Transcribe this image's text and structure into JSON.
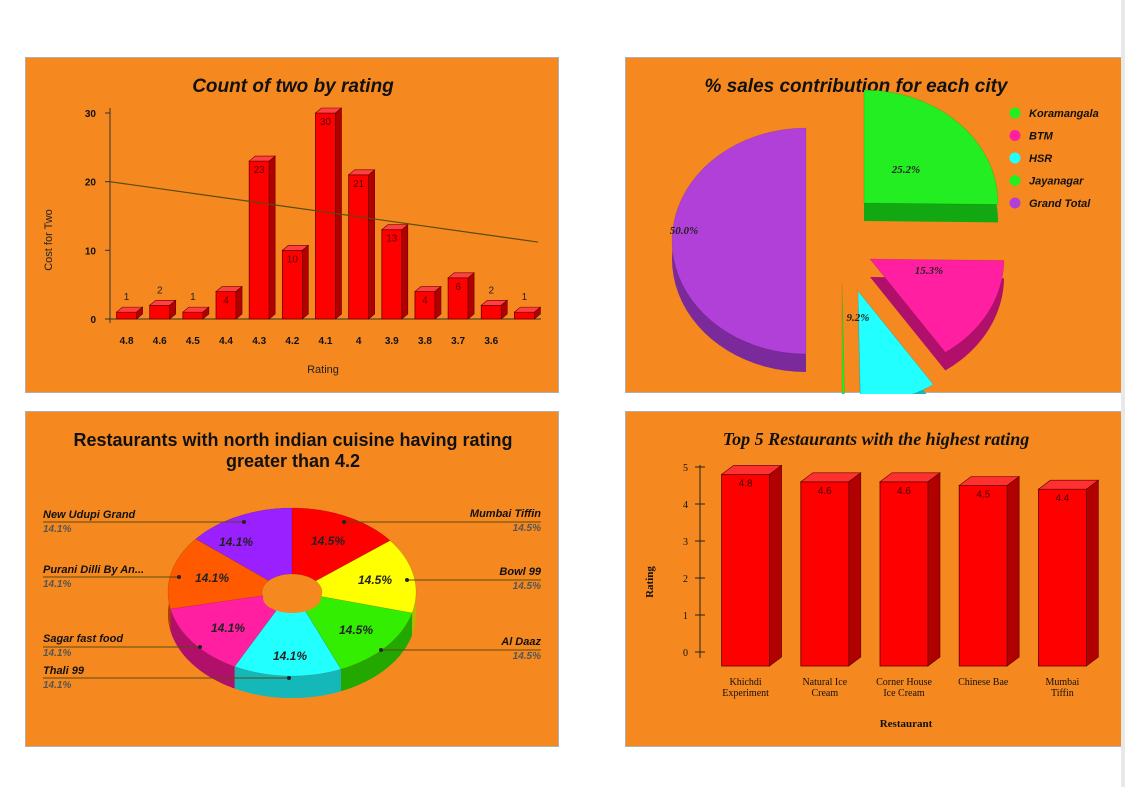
{
  "colors": {
    "panel_bg": "#f5891f",
    "bar_red": "#ff0000"
  },
  "chart_data": [
    {
      "type": "bar",
      "title": "Count of two by rating",
      "xlabel": "Rating",
      "ylabel": "Cost for Two",
      "ylim": [
        0,
        30
      ],
      "yticks": [
        "0",
        "10",
        "20",
        "30"
      ],
      "categories": [
        "4.8",
        "4.6",
        "4.5",
        "4.4",
        "4.3",
        "4.2",
        "4.1",
        "4",
        "3.9",
        "3.8",
        "3.7",
        "3.6",
        ""
      ],
      "values": [
        1,
        2,
        1,
        4,
        23,
        10,
        30,
        21,
        13,
        4,
        6,
        2,
        1
      ],
      "labels": [
        "1",
        "2",
        "1",
        "4",
        "23",
        "10",
        "30",
        "21",
        "13",
        "4",
        "6",
        "2",
        "1"
      ],
      "trendline": {
        "start": 20,
        "end": 11.2
      }
    },
    {
      "type": "pie",
      "title": "% sales contribution for each city",
      "legend": [
        "Koramangala",
        "BTM",
        "HSR",
        "Jayanagar",
        "Grand Total"
      ],
      "legend_colors": [
        "#22ee22",
        "#ff1fa0",
        "#22ffff",
        "#22ee22",
        "#b040d8"
      ],
      "slices": [
        25.2,
        15.3,
        9.2,
        0.3,
        50.0
      ],
      "labels": [
        "25.2%",
        "15.3%",
        "9.2%",
        "",
        "50.0%"
      ],
      "legend_position": "top-right"
    },
    {
      "type": "pie",
      "title_line1": "Restaurants with north indian cuisine having rating",
      "title_line2": "greater than 4.2",
      "slices": [
        {
          "name": "Mumbai Tiffin",
          "value": 14.5,
          "label": "14.5%",
          "color": "#ff0000"
        },
        {
          "name": "Bowl 99",
          "value": 14.5,
          "label": "14.5%",
          "color": "#ffff00"
        },
        {
          "name": "Al Daaz",
          "value": 14.5,
          "label": "14.5%",
          "color": "#33ee00"
        },
        {
          "name": "Thali 99",
          "value": 14.1,
          "label": "14.1%",
          "color": "#22ffff"
        },
        {
          "name": "Sagar fast food",
          "value": 14.1,
          "label": "14.1%",
          "color": "#ff1fa0"
        },
        {
          "name": "Purani Dilli By An...",
          "value": 14.1,
          "label": "14.1%",
          "color": "#ff5a00"
        },
        {
          "name": "New Udupi Grand",
          "value": 14.1,
          "label": "14.1%",
          "color": "#9a20ff"
        }
      ]
    },
    {
      "type": "bar",
      "title": "Top 5 Restaurants with the highest rating",
      "xlabel": "Restaurant",
      "ylabel": "Rating",
      "ylim": [
        0,
        5
      ],
      "yticks": [
        "0",
        "1",
        "2",
        "3",
        "4",
        "5"
      ],
      "categories": [
        [
          "Khichdi",
          "Experiment"
        ],
        [
          "Natural Ice",
          "Cream"
        ],
        [
          "Corner House",
          "Ice Cream"
        ],
        [
          "Chinese Bae"
        ],
        [
          "Mumbai",
          "Tiffin"
        ]
      ],
      "values": [
        4.8,
        4.6,
        4.6,
        4.5,
        4.4
      ],
      "labels": [
        "4.8",
        "4.6",
        "4.6",
        "4.5",
        "4.4"
      ]
    }
  ]
}
